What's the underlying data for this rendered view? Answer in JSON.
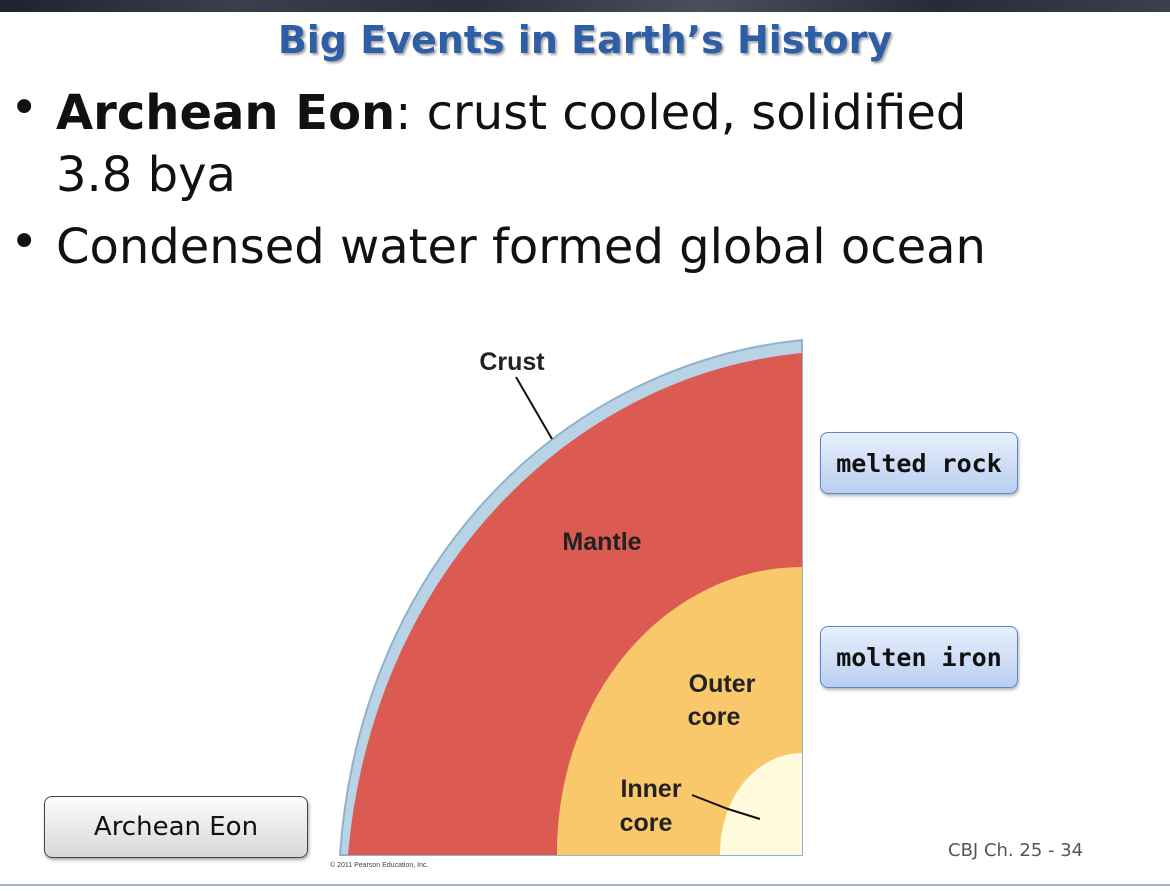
{
  "slide": {
    "title": "Big Events in Earth’s History",
    "bullets": [
      {
        "bold": "Archean Eon",
        "rest": ":  crust cooled, solidified",
        "line2": "3.8 bya"
      },
      {
        "text": "Condensed water formed global ocean"
      }
    ],
    "diagram": {
      "labels": {
        "crust": "Crust",
        "mantle": "Mantle",
        "outer_core_1": "Outer",
        "outer_core_2": "core",
        "inner_core_1": "Inner",
        "inner_core_2": "core"
      },
      "copyright": "© 2011 Pearson Education, Inc.",
      "colors": {
        "crust": "#b9d3e6",
        "mantle": "#db5b52",
        "outer_core": "#f8c86a",
        "inner_core": "#fffbdc"
      }
    },
    "callouts": {
      "melted_rock": "melted rock",
      "molten_iron": "molten iron"
    },
    "button": {
      "label": "Archean Eon"
    },
    "footer": {
      "page": "CBJ Ch. 25  - 34"
    }
  }
}
